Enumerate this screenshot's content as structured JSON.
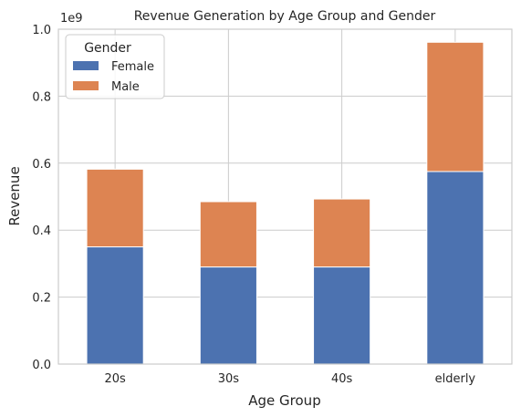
{
  "chart_data": {
    "type": "bar",
    "stacked": true,
    "title": "Revenue Generation by Age Group and Gender",
    "xlabel": "Age Group",
    "ylabel": "Revenue",
    "y_offset_text": "1e9",
    "categories": [
      "20s",
      "30s",
      "40s",
      "elderly"
    ],
    "ylim": [
      0,
      1.0
    ],
    "yticks": [
      0.0,
      0.2,
      0.4,
      0.6,
      0.8,
      1.0
    ],
    "ytick_labels": [
      "0.0",
      "0.2",
      "0.4",
      "0.6",
      "0.8",
      "1.0"
    ],
    "grid": true,
    "legend": {
      "title": "Gender",
      "placement": "top-left"
    },
    "series": [
      {
        "name": "Female",
        "color": "#4c72b0",
        "values": [
          0.35,
          0.29,
          0.29,
          0.575
        ]
      },
      {
        "name": "Male",
        "color": "#dd8452",
        "values": [
          0.232,
          0.195,
          0.203,
          0.386
        ]
      }
    ]
  }
}
